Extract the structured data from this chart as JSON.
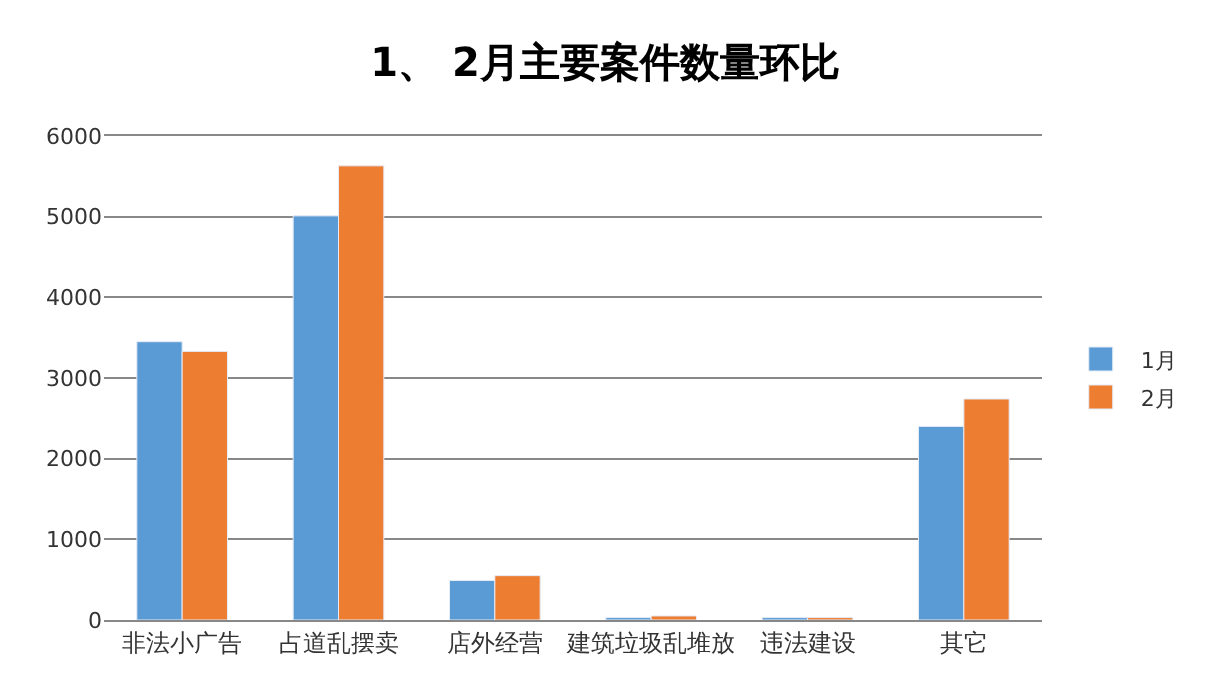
{
  "chart_data": {
    "type": "bar",
    "title": "1、 2月主要案件数量环比",
    "categories": [
      "非法小广告",
      "占道乱摆卖",
      "店外经营",
      "建筑垃圾乱堆放",
      "违法建设",
      "其它"
    ],
    "series": [
      {
        "name": "1月",
        "color": "#5b9bd5",
        "values": [
          3450,
          5010,
          490,
          30,
          30,
          2400
        ]
      },
      {
        "name": "2月",
        "color": "#ed7d31",
        "values": [
          3330,
          5630,
          550,
          50,
          30,
          2740
        ]
      }
    ],
    "ylim": [
      0,
      6000
    ],
    "yticks": [
      0,
      1000,
      2000,
      3000,
      4000,
      5000,
      6000
    ],
    "grid": "y",
    "legend": "right"
  }
}
